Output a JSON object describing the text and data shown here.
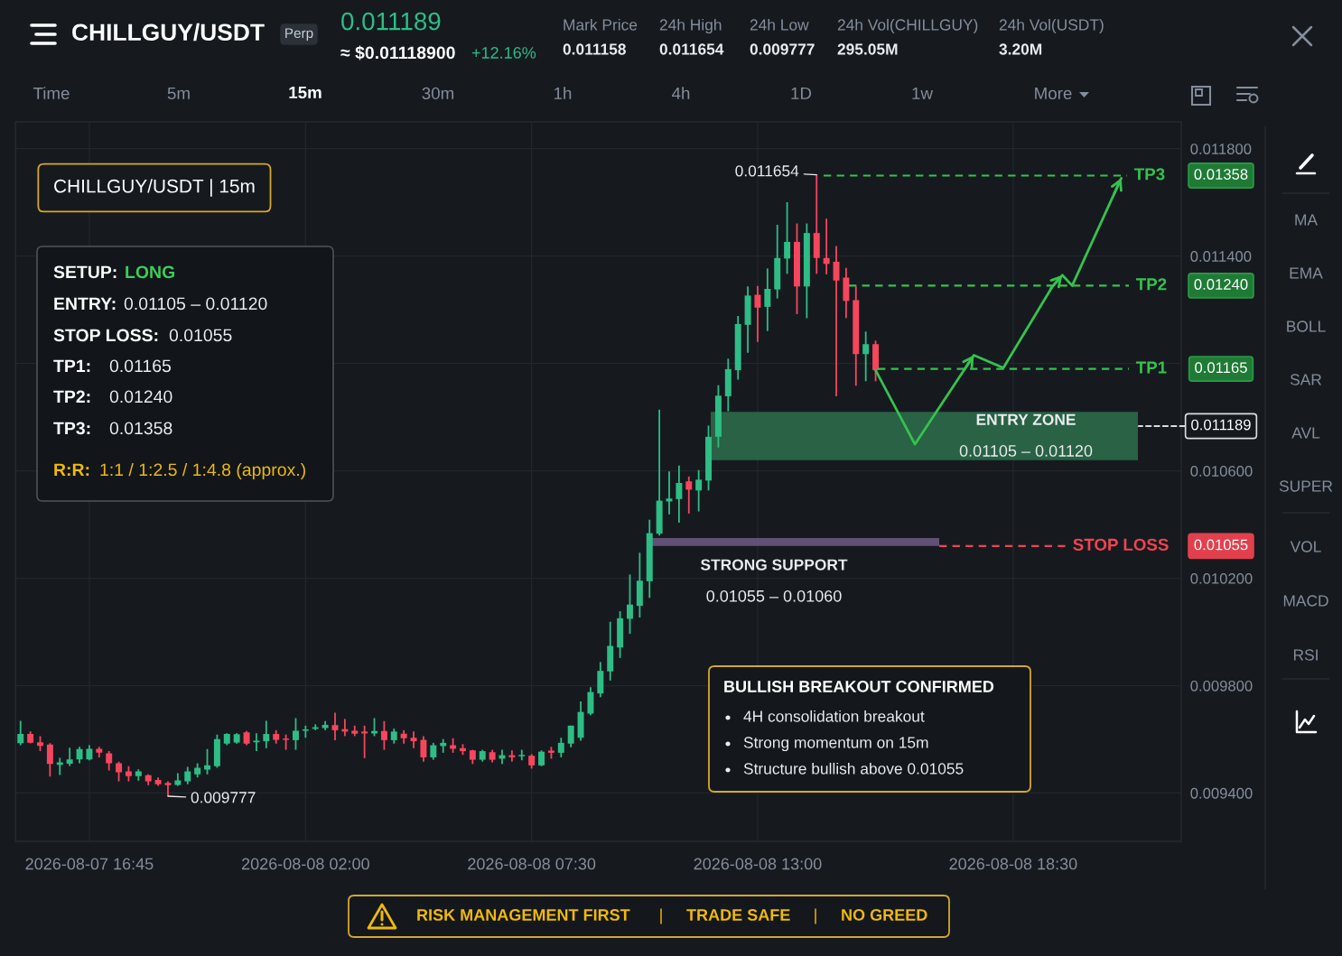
{
  "chart_data": {
    "type": "candlestick",
    "title": "CHILLGUY/USDT",
    "categories": [
      null,
      null,
      null,
      null,
      null,
      null,
      null,
      "2026-08-07 16:45",
      null,
      null,
      null,
      null,
      null,
      null,
      null,
      null,
      null,
      null,
      null,
      null,
      null,
      null,
      null,
      null,
      null,
      null,
      null,
      null,
      null,
      "2026-08-08 02:00",
      null,
      null,
      null,
      null,
      null,
      null,
      null,
      null,
      null,
      null,
      null,
      null,
      null,
      null,
      null,
      null,
      null,
      null,
      null,
      null,
      null,
      null,
      "2026-08-08 07:30",
      null,
      null,
      null,
      null,
      null,
      null,
      null,
      null,
      null,
      null,
      null,
      null,
      null,
      null,
      null,
      null,
      null,
      null,
      null,
      null,
      null,
      null,
      "2026-08-08 13:00",
      null,
      null,
      null,
      null,
      null,
      null,
      null,
      null,
      null,
      null,
      null,
      null,
      null,
      null,
      null,
      null,
      null,
      null,
      null,
      null,
      null,
      null,
      null,
      null,
      null,
      "2026-08-08 18:30",
      null,
      null,
      null,
      null,
      null,
      null,
      null,
      null,
      null,
      null,
      null
    ],
    "ohlc": [
      [
        0.009586,
        0.009669,
        0.009578,
        0.00962
      ],
      [
        0.00962,
        0.009629,
        0.009585,
        0.009587
      ],
      [
        0.009589,
        0.009612,
        0.009556,
        0.009576
      ],
      [
        0.009581,
        0.009586,
        0.009461,
        0.009508
      ],
      [
        0.009505,
        0.009531,
        0.009467,
        0.009514
      ],
      [
        0.009509,
        0.009569,
        0.009501,
        0.009525
      ],
      [
        0.009525,
        0.009572,
        0.009511,
        0.009564
      ],
      [
        0.009525,
        0.009578,
        0.009522,
        0.009565
      ],
      [
        0.009565,
        0.009572,
        0.009533,
        0.00955
      ],
      [
        0.009548,
        0.009556,
        0.009484,
        0.009511
      ],
      [
        0.009511,
        0.009517,
        0.009444,
        0.009477
      ],
      [
        0.009481,
        0.0095,
        0.009444,
        0.009463
      ],
      [
        0.009463,
        0.009488,
        0.009446,
        0.009481
      ],
      [
        0.009466,
        0.00947,
        0.009429,
        0.009444
      ],
      [
        0.009449,
        0.009458,
        0.009427,
        0.009433
      ],
      [
        0.009438,
        0.009444,
        0.009388,
        0.009429
      ],
      [
        0.00943,
        0.009474,
        0.009427,
        0.009447
      ],
      [
        0.009444,
        0.009497,
        0.009433,
        0.009481
      ],
      [
        0.00947,
        0.009511,
        0.009458,
        0.009494
      ],
      [
        0.009487,
        0.009564,
        0.00947,
        0.009503
      ],
      [
        0.0095,
        0.009618,
        0.009494,
        0.009601
      ],
      [
        0.009584,
        0.009623,
        0.009578,
        0.00962
      ],
      [
        0.009588,
        0.009623,
        0.009584,
        0.009619
      ],
      [
        0.009626,
        0.009631,
        0.009578,
        0.009584
      ],
      [
        0.009589,
        0.009623,
        0.009556,
        0.009595
      ],
      [
        0.009593,
        0.009669,
        0.009567,
        0.00962
      ],
      [
        0.00962,
        0.009634,
        0.009584,
        0.009598
      ],
      [
        0.009603,
        0.009618,
        0.009561,
        0.009598
      ],
      [
        0.009597,
        0.009679,
        0.009561,
        0.009632
      ],
      [
        0.009632,
        0.009651,
        0.009606,
        0.009636
      ],
      [
        0.009639,
        0.009656,
        0.009634,
        0.009645
      ],
      [
        0.009642,
        0.009668,
        0.009634,
        0.009654
      ],
      [
        0.009653,
        0.009699,
        0.009597,
        0.009634
      ],
      [
        0.009638,
        0.009676,
        0.009612,
        0.009629
      ],
      [
        0.009632,
        0.009651,
        0.009612,
        0.009621
      ],
      [
        0.009629,
        0.009651,
        0.00953,
        0.009622
      ],
      [
        0.009622,
        0.009679,
        0.009612,
        0.009631
      ],
      [
        0.009631,
        0.009668,
        0.009561,
        0.009597
      ],
      [
        0.009597,
        0.00964,
        0.009584,
        0.009629
      ],
      [
        0.009621,
        0.009634,
        0.009584,
        0.009604
      ],
      [
        0.009606,
        0.009629,
        0.009567,
        0.009593
      ],
      [
        0.009598,
        0.009612,
        0.009517,
        0.009533
      ],
      [
        0.009533,
        0.009587,
        0.009524,
        0.009578
      ],
      [
        0.009575,
        0.009601,
        0.00955,
        0.009587
      ],
      [
        0.009578,
        0.009604,
        0.00955,
        0.009565
      ],
      [
        0.009567,
        0.009582,
        0.009542,
        0.009556
      ],
      [
        0.009559,
        0.009561,
        0.009508,
        0.009524
      ],
      [
        0.009524,
        0.009561,
        0.009517,
        0.009556
      ],
      [
        0.009552,
        0.009561,
        0.009514,
        0.009524
      ],
      [
        0.009528,
        0.009561,
        0.009508,
        0.009541
      ],
      [
        0.009541,
        0.009559,
        0.009517,
        0.009533
      ],
      [
        0.009537,
        0.009561,
        0.009522,
        0.009541
      ],
      [
        0.009539,
        0.009545,
        0.009491,
        0.009503
      ],
      [
        0.009503,
        0.009559,
        0.0095,
        0.009554
      ],
      [
        0.009558,
        0.009572,
        0.009528,
        0.00955
      ],
      [
        0.00955,
        0.009606,
        0.009533,
        0.009587
      ],
      [
        0.009584,
        0.009651,
        0.00957,
        0.009651
      ],
      [
        0.009606,
        0.009741,
        0.009595,
        0.009702
      ],
      [
        0.009696,
        0.009794,
        0.00969,
        0.009776
      ],
      [
        0.009771,
        0.009888,
        0.009757,
        0.009855
      ],
      [
        0.009853,
        0.010038,
        0.009819,
        0.009948
      ],
      [
        0.009942,
        0.010077,
        0.009903,
        0.010051
      ],
      [
        0.010049,
        0.010214,
        0.009993,
        0.010102
      ],
      [
        0.010097,
        0.010295,
        0.010054,
        0.010191
      ],
      [
        0.010189,
        0.010418,
        0.010127,
        0.010368
      ],
      [
        0.010366,
        0.010828,
        0.010359,
        0.010489
      ],
      [
        0.010486,
        0.010598,
        0.010438,
        0.010497
      ],
      [
        0.010495,
        0.01062,
        0.010407,
        0.010555
      ],
      [
        0.010561,
        0.010579,
        0.010441,
        0.01053
      ],
      [
        0.010527,
        0.010603,
        0.010449,
        0.010567
      ],
      [
        0.010564,
        0.010769,
        0.010527,
        0.010727
      ],
      [
        0.010727,
        0.010919,
        0.010687,
        0.01088
      ],
      [
        0.010878,
        0.011018,
        0.010822,
        0.010979
      ],
      [
        0.010975,
        0.011177,
        0.01094,
        0.011147
      ],
      [
        0.011144,
        0.011287,
        0.01104,
        0.011253
      ],
      [
        0.011256,
        0.011289,
        0.01108,
        0.011208
      ],
      [
        0.011211,
        0.011354,
        0.011121,
        0.011278
      ],
      [
        0.011276,
        0.011517,
        0.011242,
        0.011393
      ],
      [
        0.011391,
        0.011601,
        0.011334,
        0.011453
      ],
      [
        0.011453,
        0.011522,
        0.011184,
        0.011287
      ],
      [
        0.011287,
        0.011522,
        0.011169,
        0.011486
      ],
      [
        0.011486,
        0.011703,
        0.011334,
        0.011393
      ],
      [
        0.011393,
        0.011539,
        0.011332,
        0.011371
      ],
      [
        0.011379,
        0.011438,
        0.010878,
        0.011309
      ],
      [
        0.01132,
        0.011356,
        0.011169,
        0.011233
      ],
      [
        0.011236,
        0.011287,
        0.010917,
        0.011035
      ],
      [
        0.011035,
        0.011119,
        0.010934,
        0.011072
      ],
      [
        0.011072,
        0.011085,
        0.010934,
        0.010975
      ],
      null,
      null,
      null,
      null,
      null,
      null,
      null,
      null,
      null,
      null,
      null,
      null,
      null,
      null,
      null,
      null,
      null,
      null,
      null,
      null,
      null,
      null,
      null,
      null,
      null
    ],
    "colors": [
      "#2ebd85",
      "#f6465d",
      "#f6465d",
      "#f6465d",
      "#2ebd85",
      "#2ebd85",
      "#2ebd85",
      "#2ebd85",
      "#f6465d",
      "#f6465d",
      "#f6465d",
      "#f6465d",
      "#2ebd85",
      "#f6465d",
      "#f6465d",
      "#f6465d",
      "#2ebd85",
      "#2ebd85",
      "#2ebd85",
      "#2ebd85",
      "#2ebd85",
      "#2ebd85",
      "#2ebd85",
      "#f6465d",
      "#2ebd85",
      "#2ebd85",
      "#f6465d",
      "#f6465d",
      "#2ebd85",
      "#2ebd85",
      "#2ebd85",
      "#2ebd85",
      "#f6465d",
      "#f6465d",
      "#f6465d",
      "#f6465d",
      "#2ebd85",
      "#f6465d",
      "#2ebd85",
      "#f6465d",
      "#f6465d",
      "#f6465d",
      "#2ebd85",
      "#2ebd85",
      "#f6465d",
      "#f6465d",
      "#f6465d",
      "#2ebd85",
      "#f6465d",
      "#2ebd85",
      "#f6465d",
      "#2ebd85",
      "#f6465d",
      "#2ebd85",
      "#f6465d",
      "#2ebd85",
      "#2ebd85",
      "#2ebd85",
      "#2ebd85",
      "#2ebd85",
      "#2ebd85",
      "#2ebd85",
      "#2ebd85",
      "#2ebd85",
      "#2ebd85",
      "#2ebd85",
      "#2ebd85",
      "#2ebd85",
      "#f6465d",
      "#2ebd85",
      "#2ebd85",
      "#2ebd85",
      "#2ebd85",
      "#2ebd85",
      "#2ebd85",
      "#f6465d",
      "#2ebd85",
      "#2ebd85",
      "#2ebd85",
      "#f6465d",
      "#2ebd85",
      "#f6465d",
      "#f6465d",
      "#f6465d",
      "#f6465d",
      "#f6465d",
      "#2ebd85",
      "#f6465d",
      null,
      null,
      null,
      null,
      null,
      null,
      null,
      null,
      null,
      null,
      null,
      null,
      null,
      null,
      null,
      null,
      null,
      null,
      null,
      null,
      null,
      null,
      null,
      null,
      null
    ],
    "series": [
      {
        "type": "line",
        "color": "#36c24f",
        "values": [
          null,
          null,
          null,
          null,
          null,
          null,
          null,
          null,
          null,
          null,
          null,
          null,
          null,
          null,
          null,
          null,
          null,
          null,
          null,
          null,
          null,
          null,
          null,
          null,
          null,
          null,
          null,
          null,
          null,
          null,
          null,
          null,
          null,
          null,
          null,
          null,
          null,
          null,
          null,
          null,
          null,
          null,
          null,
          null,
          null,
          null,
          null,
          null,
          null,
          null,
          null,
          null,
          null,
          null,
          null,
          null,
          null,
          null,
          null,
          null,
          null,
          null,
          null,
          null,
          null,
          null,
          null,
          null,
          null,
          null,
          null,
          null,
          null,
          null,
          null,
          null,
          null,
          null,
          null,
          null,
          null,
          null,
          null,
          null,
          null,
          null,
          null,
          0.010975,
          null,
          null,
          null,
          0.010699,
          null,
          null,
          null,
          null,
          null,
          0.011031,
          null,
          null,
          0.010984,
          null,
          null,
          null,
          null,
          0.011287,
          0.011329,
          0.01129,
          null,
          null,
          null,
          null,
          0.01169
        ]
      }
    ],
    "ylim": [
      0.00922,
      0.0119
    ],
    "yticks": [
      {
        "value": 0.0118,
        "label": "0.011800"
      },
      {
        "value": 0.0114,
        "label": "0.011400"
      },
      {
        "value": 0.011,
        "label": null
      },
      {
        "value": 0.0106,
        "label": "0.010600"
      },
      {
        "value": 0.0102,
        "label": "0.010200"
      },
      {
        "value": 0.0098,
        "label": "0.009800"
      },
      {
        "value": 0.0094,
        "label": "0.009400"
      }
    ],
    "grid": true,
    "ref_lines": [
      {
        "axis": "y",
        "value": 0.0117,
        "label": "TP3",
        "color": "#36c24f",
        "line_style": "dashed"
      },
      {
        "axis": "y",
        "value": 0.01129,
        "label": "TP2",
        "color": "#36c24f",
        "line_style": "dashed"
      },
      {
        "axis": "y",
        "value": 0.01098,
        "label": "TP1",
        "color": "#36c24f",
        "line_style": "dashed"
      },
      {
        "axis": "y",
        "value": 0.01032,
        "label": "STOP LOSS",
        "color": "#ef4452",
        "line_style": "dashed"
      }
    ],
    "bands": [
      {
        "axis": "y",
        "from": 0.01064,
        "to": 0.01082,
        "label": "ENTRY ZONE",
        "color": "#2b6a48"
      },
      {
        "axis": "y",
        "from": 0.01032,
        "to": 0.01035,
        "label": "STRONG SUPPORT",
        "color": "#6a587f"
      }
    ],
    "annotations": [
      "Perp",
      "0.011189",
      "≈ $0.01118900",
      "+12.16%",
      "Mark Price",
      "0.011158",
      "24h High",
      "0.011654",
      "24h Low",
      "0.009777",
      "24h Vol(CHILLGUY)",
      "295.05M",
      "24h Vol(USDT)",
      "3.20M",
      "Time",
      "5m",
      "15m",
      "30m",
      "1h",
      "4h",
      "1D",
      "1w",
      "More",
      "MA",
      "EMA",
      "BOLL",
      "SAR",
      "AVL",
      "SUPER",
      "VOL",
      "MACD",
      "RSI",
      "CHILLGUY/USDT | 15m",
      "SETUP:",
      "LONG",
      "ENTRY:",
      "0.01105 – 0.01120",
      "STOP LOSS:",
      "0.01055",
      "TP1:",
      "0.01165",
      "TP2:",
      "0.01240",
      "TP3:",
      "0.01358",
      "R:R:",
      "1:1 / 1:2.5 / 1:4.8 (approx.)",
      "0.01105 – 0.01120",
      "0.01055 – 0.01060",
      "BULLISH BREAKOUT CONFIRMED",
      "4H consolidation breakout",
      "Strong momentum on 15m",
      "Structure bullish above 0.01055",
      "RISK MANAGEMENT FIRST",
      "|",
      "TRADE SAFE",
      "|",
      "NO GREED",
      "0.011654",
      "0.009777",
      "0.01358",
      "0.01240",
      "0.01165",
      "0.011189",
      "0.01055"
    ]
  }
}
